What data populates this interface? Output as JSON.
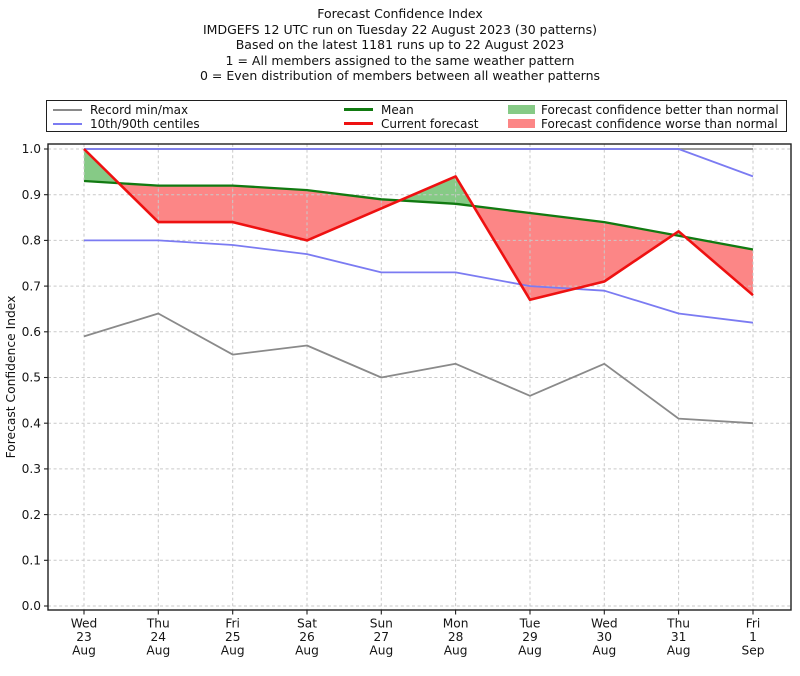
{
  "header": {
    "title": "Forecast Confidence Index",
    "subtitle_lines": [
      "IMDGEFS 12 UTC run on Tuesday 22 August 2023 (30 patterns)",
      "Based on the latest 1181 runs up to 22 August 2023",
      "1 = All members assigned to the same weather pattern",
      "0 = Even distribution of members between all weather patterns"
    ]
  },
  "legend": {
    "items": [
      {
        "label": "Record min/max",
        "type": "line",
        "color": "#8a8a8a",
        "lw": 2
      },
      {
        "label": "10th/90th centiles",
        "type": "line",
        "color": "#7b7bf2",
        "lw": 2
      },
      {
        "label": "Mean",
        "type": "line",
        "color": "#117a11",
        "lw": 3
      },
      {
        "label": "Current forecast",
        "type": "line",
        "color": "#ee1111",
        "lw": 3
      },
      {
        "label": "Forecast confidence better than normal",
        "type": "patch",
        "color": "rgba(35,158,35,0.55)"
      },
      {
        "label": "Forecast confidence worse than normal",
        "type": "patch",
        "color": "rgba(250,40,40,0.56)"
      }
    ]
  },
  "chart_data": {
    "type": "line",
    "title": "Forecast Confidence Index",
    "xlabel": "",
    "ylabel": "Forecast Confidence Index",
    "ylim": [
      0.0,
      1.0
    ],
    "y_tick_step": 0.1,
    "grid": true,
    "legend_position": "top",
    "y_tick_labels": [
      "0.0",
      "0.1",
      "0.2",
      "0.3",
      "0.4",
      "0.5",
      "0.6",
      "0.7",
      "0.8",
      "0.9",
      "1.0"
    ],
    "categories": [
      "Wed 23 Aug",
      "Thu 24 Aug",
      "Fri 25 Aug",
      "Sat 26 Aug",
      "Sun 27 Aug",
      "Mon 28 Aug",
      "Tue 29 Aug",
      "Wed 30 Aug",
      "Thu 31 Aug",
      "Fri 1 Sep"
    ],
    "x_tick_labels": [
      [
        "Wed",
        "23",
        "Aug"
      ],
      [
        "Thu",
        "24",
        "Aug"
      ],
      [
        "Fri",
        "25",
        "Aug"
      ],
      [
        "Sat",
        "26",
        "Aug"
      ],
      [
        "Sun",
        "27",
        "Aug"
      ],
      [
        "Mon",
        "28",
        "Aug"
      ],
      [
        "Tue",
        "29",
        "Aug"
      ],
      [
        "Wed",
        "30",
        "Aug"
      ],
      [
        "Thu",
        "31",
        "Aug"
      ],
      [
        "Fri",
        "1",
        "Sep"
      ]
    ],
    "series": [
      {
        "id": "record-max",
        "name": "Record max",
        "color": "#8a8a8a",
        "lw": 1.8,
        "values": [
          1.0,
          1.0,
          1.0,
          1.0,
          1.0,
          1.0,
          1.0,
          1.0,
          1.0,
          1.0
        ]
      },
      {
        "id": "record-min",
        "name": "Record min",
        "color": "#8a8a8a",
        "lw": 1.8,
        "values": [
          0.59,
          0.64,
          0.55,
          0.57,
          0.5,
          0.53,
          0.46,
          0.53,
          0.41,
          0.4
        ]
      },
      {
        "id": "p90",
        "name": "90th centile",
        "color": "#7b7bf2",
        "lw": 1.8,
        "values": [
          1.0,
          1.0,
          1.0,
          1.0,
          1.0,
          1.0,
          1.0,
          1.0,
          1.0,
          0.94
        ]
      },
      {
        "id": "p10",
        "name": "10th centile",
        "color": "#7b7bf2",
        "lw": 1.8,
        "values": [
          0.8,
          0.8,
          0.79,
          0.77,
          0.73,
          0.73,
          0.7,
          0.69,
          0.64,
          0.62
        ]
      },
      {
        "id": "mean",
        "name": "Mean",
        "color": "#117a11",
        "lw": 2.3,
        "values": [
          0.93,
          0.92,
          0.92,
          0.91,
          0.89,
          0.88,
          0.86,
          0.84,
          0.81,
          0.78
        ]
      },
      {
        "id": "current",
        "name": "Current forecast",
        "color": "#ee1111",
        "lw": 2.6,
        "values": [
          1.0,
          0.84,
          0.84,
          0.8,
          0.87,
          0.94,
          0.67,
          0.71,
          0.82,
          0.68
        ]
      }
    ],
    "fill_better_color": "rgba(35,158,35,0.55)",
    "fill_worse_color": "rgba(250,40,40,0.56)",
    "fill_between": [
      "Current forecast",
      "Mean"
    ]
  }
}
